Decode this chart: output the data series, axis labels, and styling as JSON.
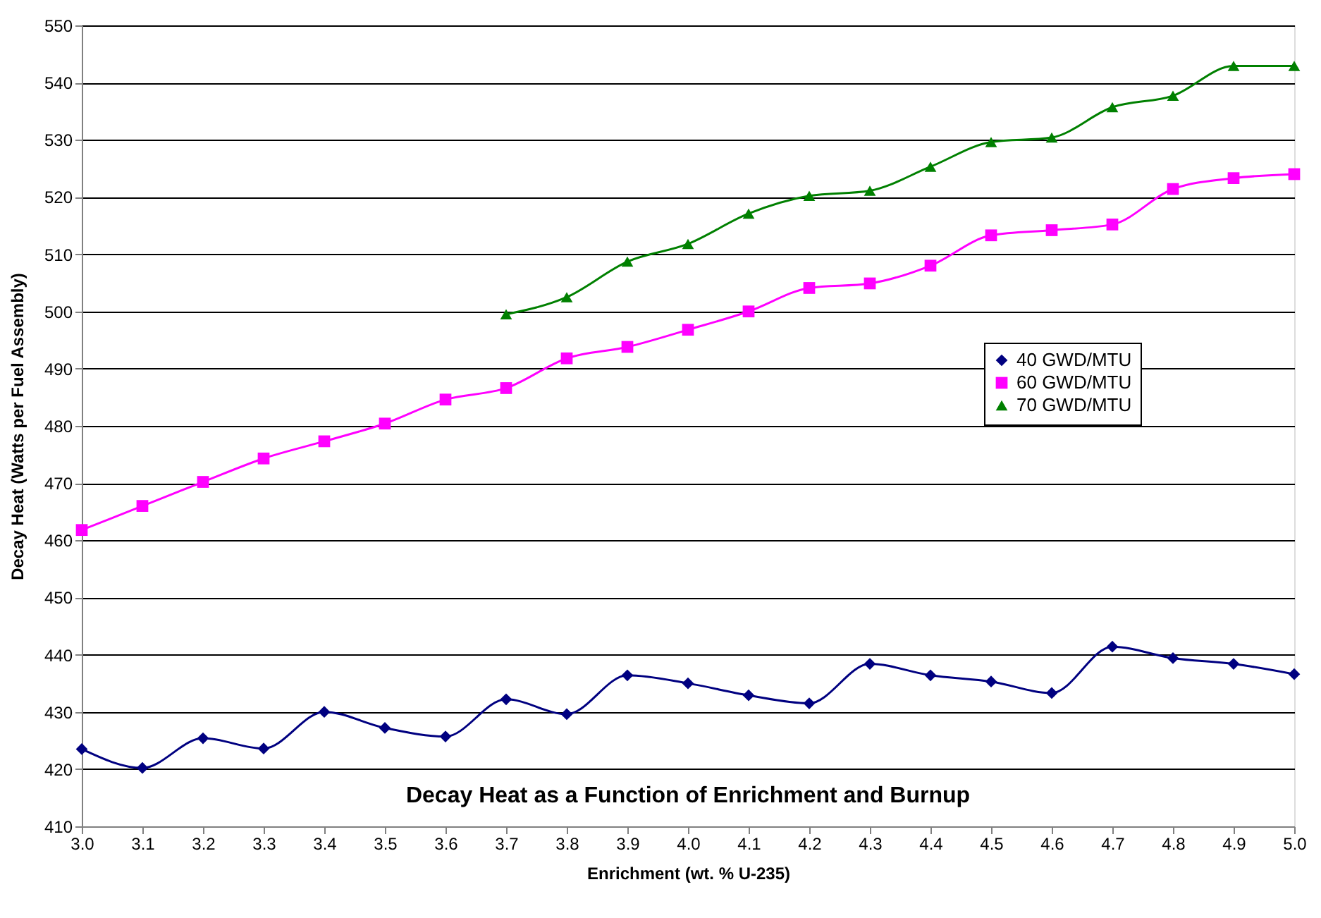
{
  "chart_data": {
    "type": "line",
    "title": "Decay Heat as a Function of Enrichment and Burnup",
    "xlabel": "Enrichment (wt. % U-235)",
    "ylabel": "Decay Heat (Watts per Fuel Assembly)",
    "x": [
      3.0,
      3.1,
      3.2,
      3.3,
      3.4,
      3.5,
      3.6,
      3.7,
      3.8,
      3.9,
      4.0,
      4.1,
      4.2,
      4.3,
      4.4,
      4.5,
      4.6,
      4.7,
      4.8,
      4.9,
      5.0
    ],
    "series": [
      {
        "name": "40 GWD/MTU",
        "color": "#000080",
        "marker": "diamond",
        "values": [
          423.5,
          420.2,
          425.4,
          423.6,
          430.0,
          427.2,
          425.7,
          432.2,
          429.6,
          436.4,
          435.0,
          432.9,
          431.5,
          438.4,
          436.4,
          435.3,
          433.3,
          441.4,
          439.4,
          438.4,
          436.6
        ]
      },
      {
        "name": "60 GWD/MTU",
        "color": "#ff00ff",
        "marker": "square",
        "values": [
          461.8,
          466.0,
          470.2,
          474.3,
          477.3,
          480.4,
          484.6,
          486.6,
          491.8,
          493.8,
          496.8,
          500.0,
          504.1,
          504.9,
          508.0,
          513.3,
          514.2,
          515.2,
          521.4,
          523.3,
          524.0
        ]
      },
      {
        "name": "70 GWD/MTU",
        "color": "#008000",
        "marker": "triangle",
        "x": [
          3.7,
          3.8,
          3.9,
          4.0,
          4.1,
          4.2,
          4.3,
          4.4,
          4.5,
          4.6,
          4.7,
          4.8,
          4.9,
          5.0
        ],
        "values": [
          499.5,
          502.5,
          508.7,
          511.8,
          517.1,
          520.2,
          521.1,
          525.3,
          529.6,
          530.4,
          535.7,
          537.7,
          542.9,
          542.9
        ]
      }
    ],
    "xlim": [
      3.0,
      5.0
    ],
    "xticks": [
      {
        "value": 3.0,
        "label": "3.0"
      },
      {
        "value": 3.1,
        "label": "3.1"
      },
      {
        "value": 3.2,
        "label": "3.2"
      },
      {
        "value": 3.3,
        "label": "3.3"
      },
      {
        "value": 3.4,
        "label": "3.4"
      },
      {
        "value": 3.5,
        "label": "3.5"
      },
      {
        "value": 3.6,
        "label": "3.6"
      },
      {
        "value": 3.7,
        "label": "3.7"
      },
      {
        "value": 3.8,
        "label": "3.8"
      },
      {
        "value": 3.9,
        "label": "3.9"
      },
      {
        "value": 4.0,
        "label": "4.0"
      },
      {
        "value": 4.1,
        "label": "4.1"
      },
      {
        "value": 4.2,
        "label": "4.2"
      },
      {
        "value": 4.3,
        "label": "4.3"
      },
      {
        "value": 4.4,
        "label": "4.4"
      },
      {
        "value": 4.5,
        "label": "4.5"
      },
      {
        "value": 4.6,
        "label": "4.6"
      },
      {
        "value": 4.7,
        "label": "4.7"
      },
      {
        "value": 4.8,
        "label": "4.8"
      },
      {
        "value": 4.9,
        "label": "4.9"
      },
      {
        "value": 5.0,
        "label": "5.0"
      }
    ],
    "ylim": [
      410,
      550
    ],
    "yticks": [
      410,
      420,
      430,
      440,
      450,
      460,
      470,
      480,
      490,
      500,
      510,
      520,
      530,
      540,
      550
    ],
    "grid": "y",
    "legend": "right",
    "line_style": "solid"
  }
}
